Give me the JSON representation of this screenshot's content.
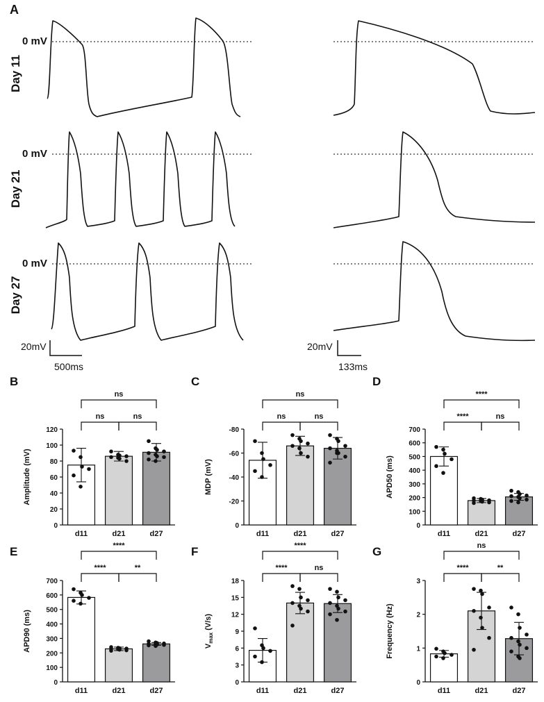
{
  "panel_a": {
    "label": "A",
    "rows": [
      {
        "label": "Day 11",
        "zero": "0 mV"
      },
      {
        "label": "Day 21",
        "zero": "0 mV"
      },
      {
        "label": "Day 27",
        "zero": "0 mV"
      }
    ],
    "scale_left": {
      "voltage": "20mV",
      "time": "500ms"
    },
    "scale_right": {
      "voltage": "20mV",
      "time": "133ms"
    }
  },
  "chart_data": [
    {
      "type": "bar",
      "panel": "B",
      "ylabel": "Amplitude (mV)",
      "categories": [
        "d11",
        "d21",
        "d27"
      ],
      "values": [
        75,
        86,
        91
      ],
      "errors": [
        21,
        6,
        11
      ],
      "colors": [
        "#ffffff",
        "#d4d4d4",
        "#9b9b9d"
      ],
      "points": [
        [
          93,
          85,
          73,
          70,
          62,
          48
        ],
        [
          92,
          88,
          87,
          86,
          85,
          84,
          83,
          80
        ],
        [
          105,
          96,
          94,
          92,
          90,
          88,
          86,
          85,
          82,
          80
        ]
      ],
      "ylim": [
        0,
        120
      ],
      "yticks": [
        0,
        20,
        40,
        60,
        80,
        100,
        120
      ],
      "comparisons": [
        {
          "groups": [
            0,
            1
          ],
          "label": "ns"
        },
        {
          "groups": [
            1,
            2
          ],
          "label": "ns"
        },
        {
          "groups": [
            0,
            2
          ],
          "label": "ns"
        }
      ]
    },
    {
      "type": "bar",
      "panel": "C",
      "ylabel": "MDP (mV)",
      "categories": [
        "d11",
        "d21",
        "d27"
      ],
      "values": [
        -54,
        -66,
        -64
      ],
      "errors": [
        15,
        8,
        9
      ],
      "colors": [
        "#ffffff",
        "#d4d4d4",
        "#9b9b9d"
      ],
      "points": [
        [
          -70,
          -60,
          -55,
          -50,
          -45,
          -40
        ],
        [
          -75,
          -72,
          -70,
          -68,
          -66,
          -64,
          -60,
          -57
        ],
        [
          -75,
          -72,
          -70,
          -66,
          -64,
          -62,
          -60,
          -57,
          -52,
          -60
        ]
      ],
      "ylim": [
        0,
        -80
      ],
      "yticks": [
        0,
        -20,
        -40,
        -60,
        -80
      ],
      "comparisons": [
        {
          "groups": [
            0,
            1
          ],
          "label": "ns"
        },
        {
          "groups": [
            1,
            2
          ],
          "label": "ns"
        },
        {
          "groups": [
            0,
            2
          ],
          "label": "ns"
        }
      ]
    },
    {
      "type": "bar",
      "panel": "D",
      "ylabel": "APD50 (ms)",
      "categories": [
        "d11",
        "d21",
        "d27"
      ],
      "values": [
        500,
        178,
        205
      ],
      "errors": [
        70,
        15,
        25
      ],
      "colors": [
        "#ffffff",
        "#d4d4d4",
        "#9b9b9d"
      ],
      "points": [
        [
          570,
          550,
          520,
          480,
          430,
          380
        ],
        [
          195,
          190,
          185,
          180,
          178,
          175,
          170,
          165,
          160
        ],
        [
          250,
          240,
          225,
          215,
          210,
          205,
          195,
          185,
          175,
          165
        ]
      ],
      "ylim": [
        0,
        700
      ],
      "yticks": [
        0,
        100,
        200,
        300,
        400,
        500,
        600,
        700
      ],
      "comparisons": [
        {
          "groups": [
            0,
            1
          ],
          "label": "****"
        },
        {
          "groups": [
            1,
            2
          ],
          "label": "ns"
        },
        {
          "groups": [
            0,
            2
          ],
          "label": "****"
        }
      ]
    },
    {
      "type": "bar",
      "panel": "E",
      "ylabel": "APD90 (ms)",
      "categories": [
        "d11",
        "d21",
        "d27"
      ],
      "values": [
        583,
        228,
        262
      ],
      "errors": [
        45,
        12,
        10
      ],
      "colors": [
        "#ffffff",
        "#d4d4d4",
        "#9b9b9d"
      ],
      "points": [
        [
          640,
          615,
          600,
          580,
          560,
          540
        ],
        [
          240,
          235,
          232,
          230,
          228,
          225,
          222,
          218,
          215
        ],
        [
          280,
          272,
          268,
          265,
          262,
          260,
          258,
          255,
          252,
          248
        ]
      ],
      "ylim": [
        0,
        700
      ],
      "yticks": [
        0,
        100,
        200,
        300,
        400,
        500,
        600,
        700
      ],
      "comparisons": [
        {
          "groups": [
            0,
            1
          ],
          "label": "****"
        },
        {
          "groups": [
            1,
            2
          ],
          "label": "**"
        },
        {
          "groups": [
            0,
            2
          ],
          "label": "****"
        }
      ]
    },
    {
      "type": "bar",
      "panel": "F",
      "ylabel": "V",
      "ylabel_sub": "max",
      "ylabel_unit": "(V/s)",
      "categories": [
        "d11",
        "d21",
        "d27"
      ],
      "values": [
        5.6,
        14,
        13.9
      ],
      "errors": [
        2.1,
        1.9,
        1.6
      ],
      "colors": [
        "#ffffff",
        "#d4d4d4",
        "#9b9b9d"
      ],
      "points": [
        [
          9.5,
          6.5,
          6,
          5.5,
          4.5,
          3.5
        ],
        [
          17,
          16.5,
          15,
          14.5,
          14,
          13.5,
          13,
          12.5,
          10
        ],
        [
          16.5,
          16,
          15,
          14.5,
          14,
          13.5,
          13,
          12.5,
          12,
          11
        ]
      ],
      "ylim": [
        0,
        18
      ],
      "yticks": [
        0,
        3,
        6,
        9,
        12,
        15,
        18
      ],
      "comparisons": [
        {
          "groups": [
            0,
            1
          ],
          "label": "****"
        },
        {
          "groups": [
            1,
            2
          ],
          "label": "ns"
        },
        {
          "groups": [
            0,
            2
          ],
          "label": "****"
        }
      ]
    },
    {
      "type": "bar",
      "panel": "G",
      "ylabel": "Frequency (Hz)",
      "categories": [
        "d11",
        "d21",
        "d27"
      ],
      "values": [
        0.83,
        2.1,
        1.28
      ],
      "errors": [
        0.1,
        0.55,
        0.48
      ],
      "colors": [
        "#ffffff",
        "#d4d4d4",
        "#9b9b9d"
      ],
      "points": [
        [
          0.98,
          0.9,
          0.85,
          0.8,
          0.75,
          0.7
        ],
        [
          2.75,
          2.7,
          2.6,
          2.2,
          2.1,
          1.9,
          1.6,
          1.3,
          0.95
        ],
        [
          2.2,
          2.0,
          1.6,
          1.4,
          1.3,
          1.2,
          1.1,
          1.0,
          0.9,
          0.75,
          0.7
        ]
      ],
      "ylim": [
        0,
        3
      ],
      "yticks": [
        0,
        1,
        2,
        3
      ],
      "comparisons": [
        {
          "groups": [
            0,
            1
          ],
          "label": "****"
        },
        {
          "groups": [
            1,
            2
          ],
          "label": "**"
        },
        {
          "groups": [
            0,
            2
          ],
          "label": "ns"
        }
      ]
    }
  ]
}
